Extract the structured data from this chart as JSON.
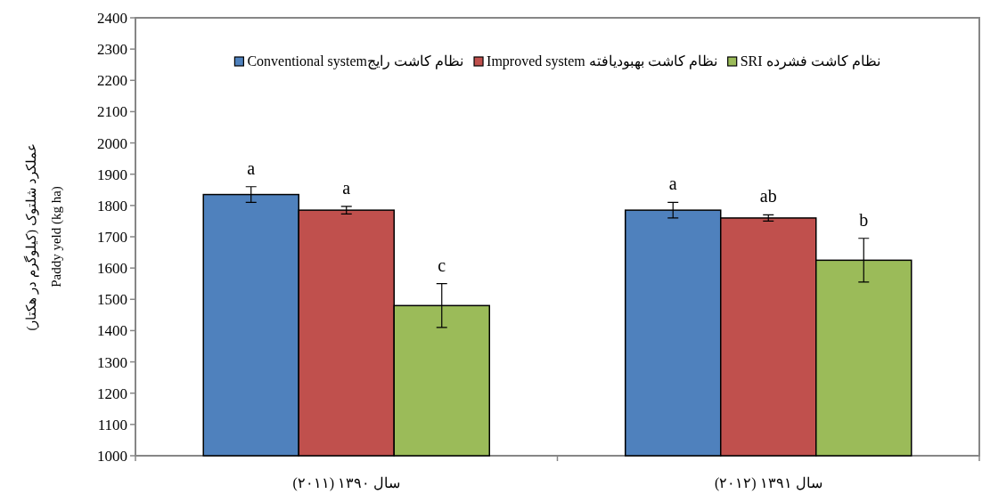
{
  "chart_data": {
    "type": "bar",
    "ylabel": "عملکرد شلتوک (کیلوگرم در هکتار)\nPaddy yeld (kg ha)",
    "categories": [
      "سال ۱۳۹۰ (۲۰۱۱)",
      "سال ۱۳۹۱ (۲۰۱۲)"
    ],
    "series": [
      {
        "name": "Conventional systemنظام کاشت رایج",
        "color": "#4f81bd",
        "values": [
          1835,
          1785
        ],
        "errors": [
          25,
          25
        ],
        "value_labels": [
          "a",
          "a"
        ]
      },
      {
        "name": "Improved system نظام کاشت بهبودیافته",
        "color": "#c0504d",
        "values": [
          1785,
          1760
        ],
        "errors": [
          12,
          10
        ],
        "value_labels": [
          "a",
          "ab"
        ]
      },
      {
        "name": "SRI نظام کاشت فشرده",
        "color": "#9bbb59",
        "values": [
          1480,
          1625
        ],
        "errors": [
          70,
          70
        ],
        "value_labels": [
          "c",
          "b"
        ]
      }
    ],
    "ylim": [
      1000,
      2400
    ],
    "yticks": [
      1000,
      1100,
      1200,
      1300,
      1400,
      1500,
      1600,
      1700,
      1800,
      1900,
      2000,
      2100,
      2200,
      2300,
      2400
    ],
    "legend": "top",
    "grid": false
  }
}
